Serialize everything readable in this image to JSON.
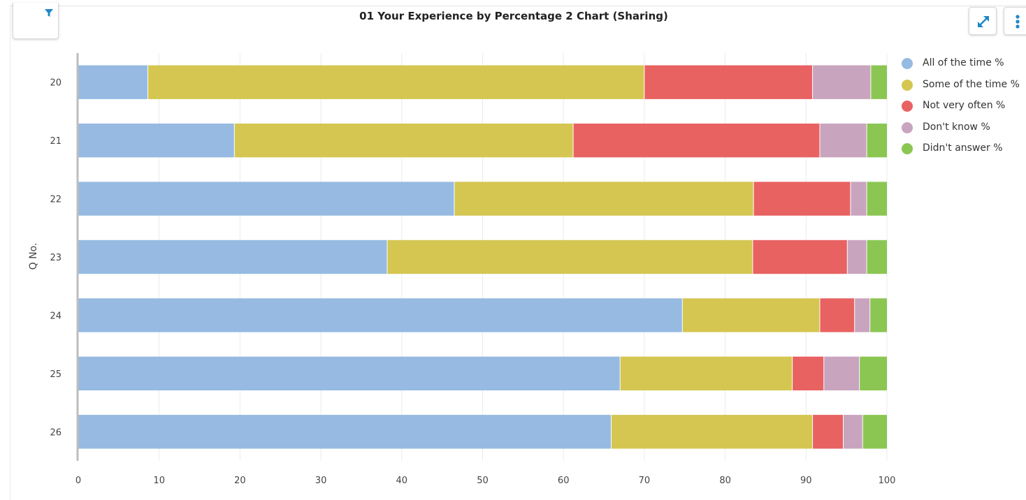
{
  "toolbar": {
    "filter_icon": "filter-icon",
    "expand_icon": "expand-icon",
    "menu_icon": "more-vertical-icon",
    "accent": "#1e88c7"
  },
  "chart_data": {
    "type": "bar",
    "orientation": "horizontal",
    "stacked": true,
    "title": "01 Your Experience by Percentage 2 Chart (Sharing)",
    "xlabel": "",
    "ylabel": "Q No.",
    "categories": [
      "20",
      "21",
      "22",
      "23",
      "24",
      "25",
      "26"
    ],
    "xlim": [
      0,
      100
    ],
    "xticks": [
      0,
      10,
      20,
      30,
      40,
      50,
      60,
      70,
      80,
      90,
      100
    ],
    "grid": "vertical",
    "legend_position": "right",
    "series": [
      {
        "name": "All of the time %",
        "color": "#96bae2",
        "values": [
          8.6,
          19.3,
          46.5,
          38.2,
          74.7,
          67.0,
          65.9
        ]
      },
      {
        "name": "Some of the time %",
        "color": "#d4c651",
        "values": [
          61.4,
          41.9,
          37.0,
          45.2,
          17.0,
          21.3,
          24.9
        ]
      },
      {
        "name": "Not very often %",
        "color": "#e86262",
        "values": [
          20.8,
          30.5,
          12.0,
          11.7,
          4.3,
          3.9,
          3.8
        ]
      },
      {
        "name": "Don't know %",
        "color": "#c9a4bf",
        "values": [
          7.2,
          5.8,
          2.0,
          2.4,
          1.9,
          4.4,
          2.4
        ]
      },
      {
        "name": "Didn't answer %",
        "color": "#8bc653",
        "values": [
          2.0,
          2.5,
          2.5,
          2.5,
          2.1,
          3.4,
          3.0
        ]
      }
    ]
  }
}
